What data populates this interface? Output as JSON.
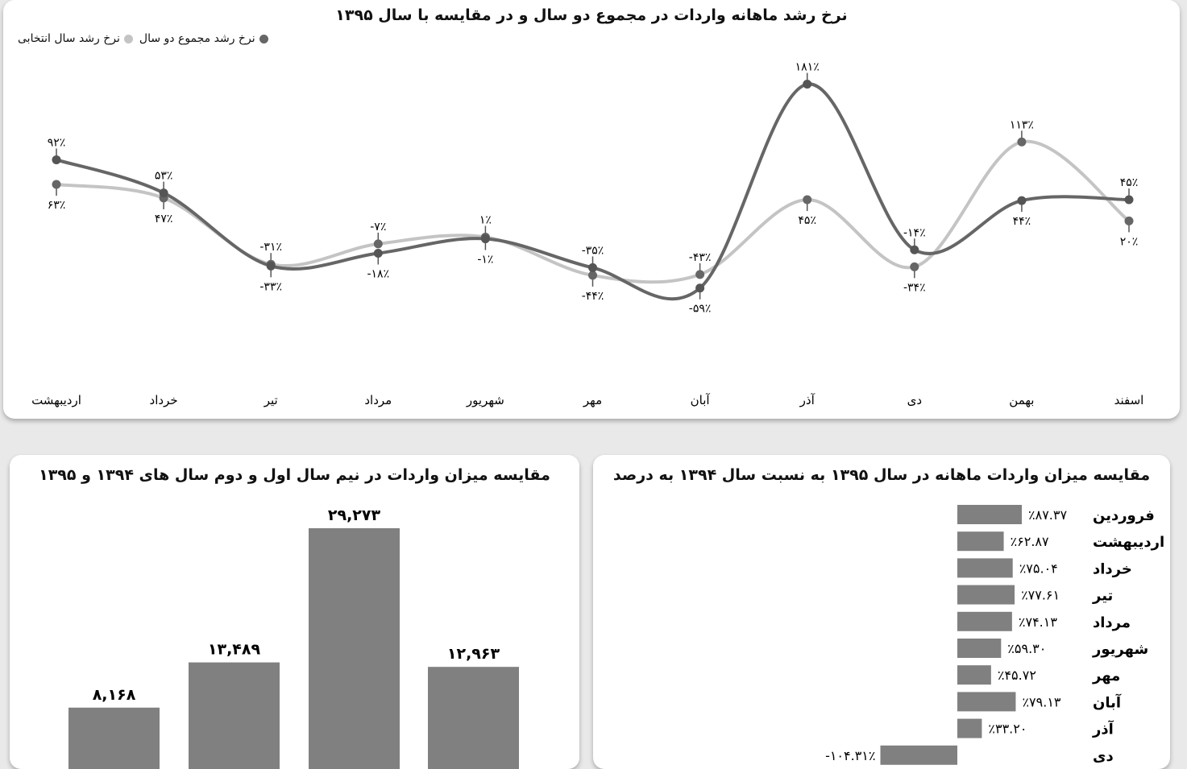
{
  "colors": {
    "series_total": "#666666",
    "series_selected": "#c4c4c4",
    "bar": "#808080"
  },
  "chart_data": [
    {
      "type": "line",
      "title": "نرخ رشد ماهانه واردات در مجموع دو سال و در مقایسه با سال ۱۳۹۵",
      "categories": [
        "اردیبهشت",
        "خرداد",
        "تیر",
        "مرداد",
        "شهریور",
        "مهر",
        "آبان",
        "آذر",
        "دی",
        "بهمن",
        "اسفند"
      ],
      "series": [
        {
          "name": "نرخ رشد مجموع دو سال",
          "color": "#666666",
          "values": [
            92,
            53,
            -33,
            -18,
            -1,
            -35,
            -59,
            181,
            -14,
            44,
            45
          ],
          "labels": [
            "۹۲٪",
            "۵۳٪",
            "-۳۳٪",
            "-۱۸٪",
            "-۱٪",
            "-۳۵٪",
            "-۵۹٪",
            "۱۸۱٪",
            "-۱۴٪",
            "۴۴٪",
            "۴۵٪"
          ]
        },
        {
          "name": "نرخ رشد سال انتخابی",
          "color": "#c4c4c4",
          "values": [
            63,
            47,
            -31,
            -7,
            1,
            -44,
            -43,
            45,
            -34,
            113,
            20
          ],
          "labels": [
            "۶۳٪",
            "۴۷٪",
            "-۳۱٪",
            "-۷٪",
            "۱٪",
            "-۴۴٪",
            "-۴۳٪",
            "۴۵٪",
            "-۳۴٪",
            "۱۱۳٪",
            "۲۰٪"
          ]
        }
      ],
      "legend": [
        "نرخ رشد مجموع دو سال",
        "نرخ رشد سال انتخابی"
      ],
      "legend_position": "top-left",
      "grid": false
    },
    {
      "type": "bar",
      "title": "مقایسه میزان واردات در نیم سال اول و دوم سال های ۱۳۹۴ و ۱۳۹۵",
      "values": [
        8168,
        13489,
        29273,
        12963
      ],
      "labels": [
        "۸,۱۶۸",
        "۱۳,۴۸۹",
        "۲۹,۲۷۳",
        "۱۲,۹۶۳"
      ],
      "grid": false
    },
    {
      "type": "bar",
      "orientation": "horizontal",
      "title": "مقایسه میزان واردات ماهانه در سال ۱۳۹۵ به نسبت سال ۱۳۹۴ به درصد",
      "categories": [
        "فروردین",
        "اردیبهشت",
        "خرداد",
        "تیر",
        "مرداد",
        "شهریور",
        "مهر",
        "آبان",
        "آذر",
        "دی"
      ],
      "values": [
        87.37,
        62.87,
        75.04,
        77.61,
        74.13,
        59.3,
        45.72,
        79.13,
        33.2,
        -104.31
      ],
      "labels": [
        "٪۸۷.۳۷",
        "٪۶۲.۸۷",
        "٪۷۵.۰۴",
        "٪۷۷.۶۱",
        "٪۷۴.۱۳",
        "٪۵۹.۳۰",
        "٪۴۵.۷۲",
        "٪۷۹.۱۳",
        "٪۳۳.۲۰",
        "-۱۰۴.۳۱٪"
      ],
      "grid": false
    }
  ]
}
